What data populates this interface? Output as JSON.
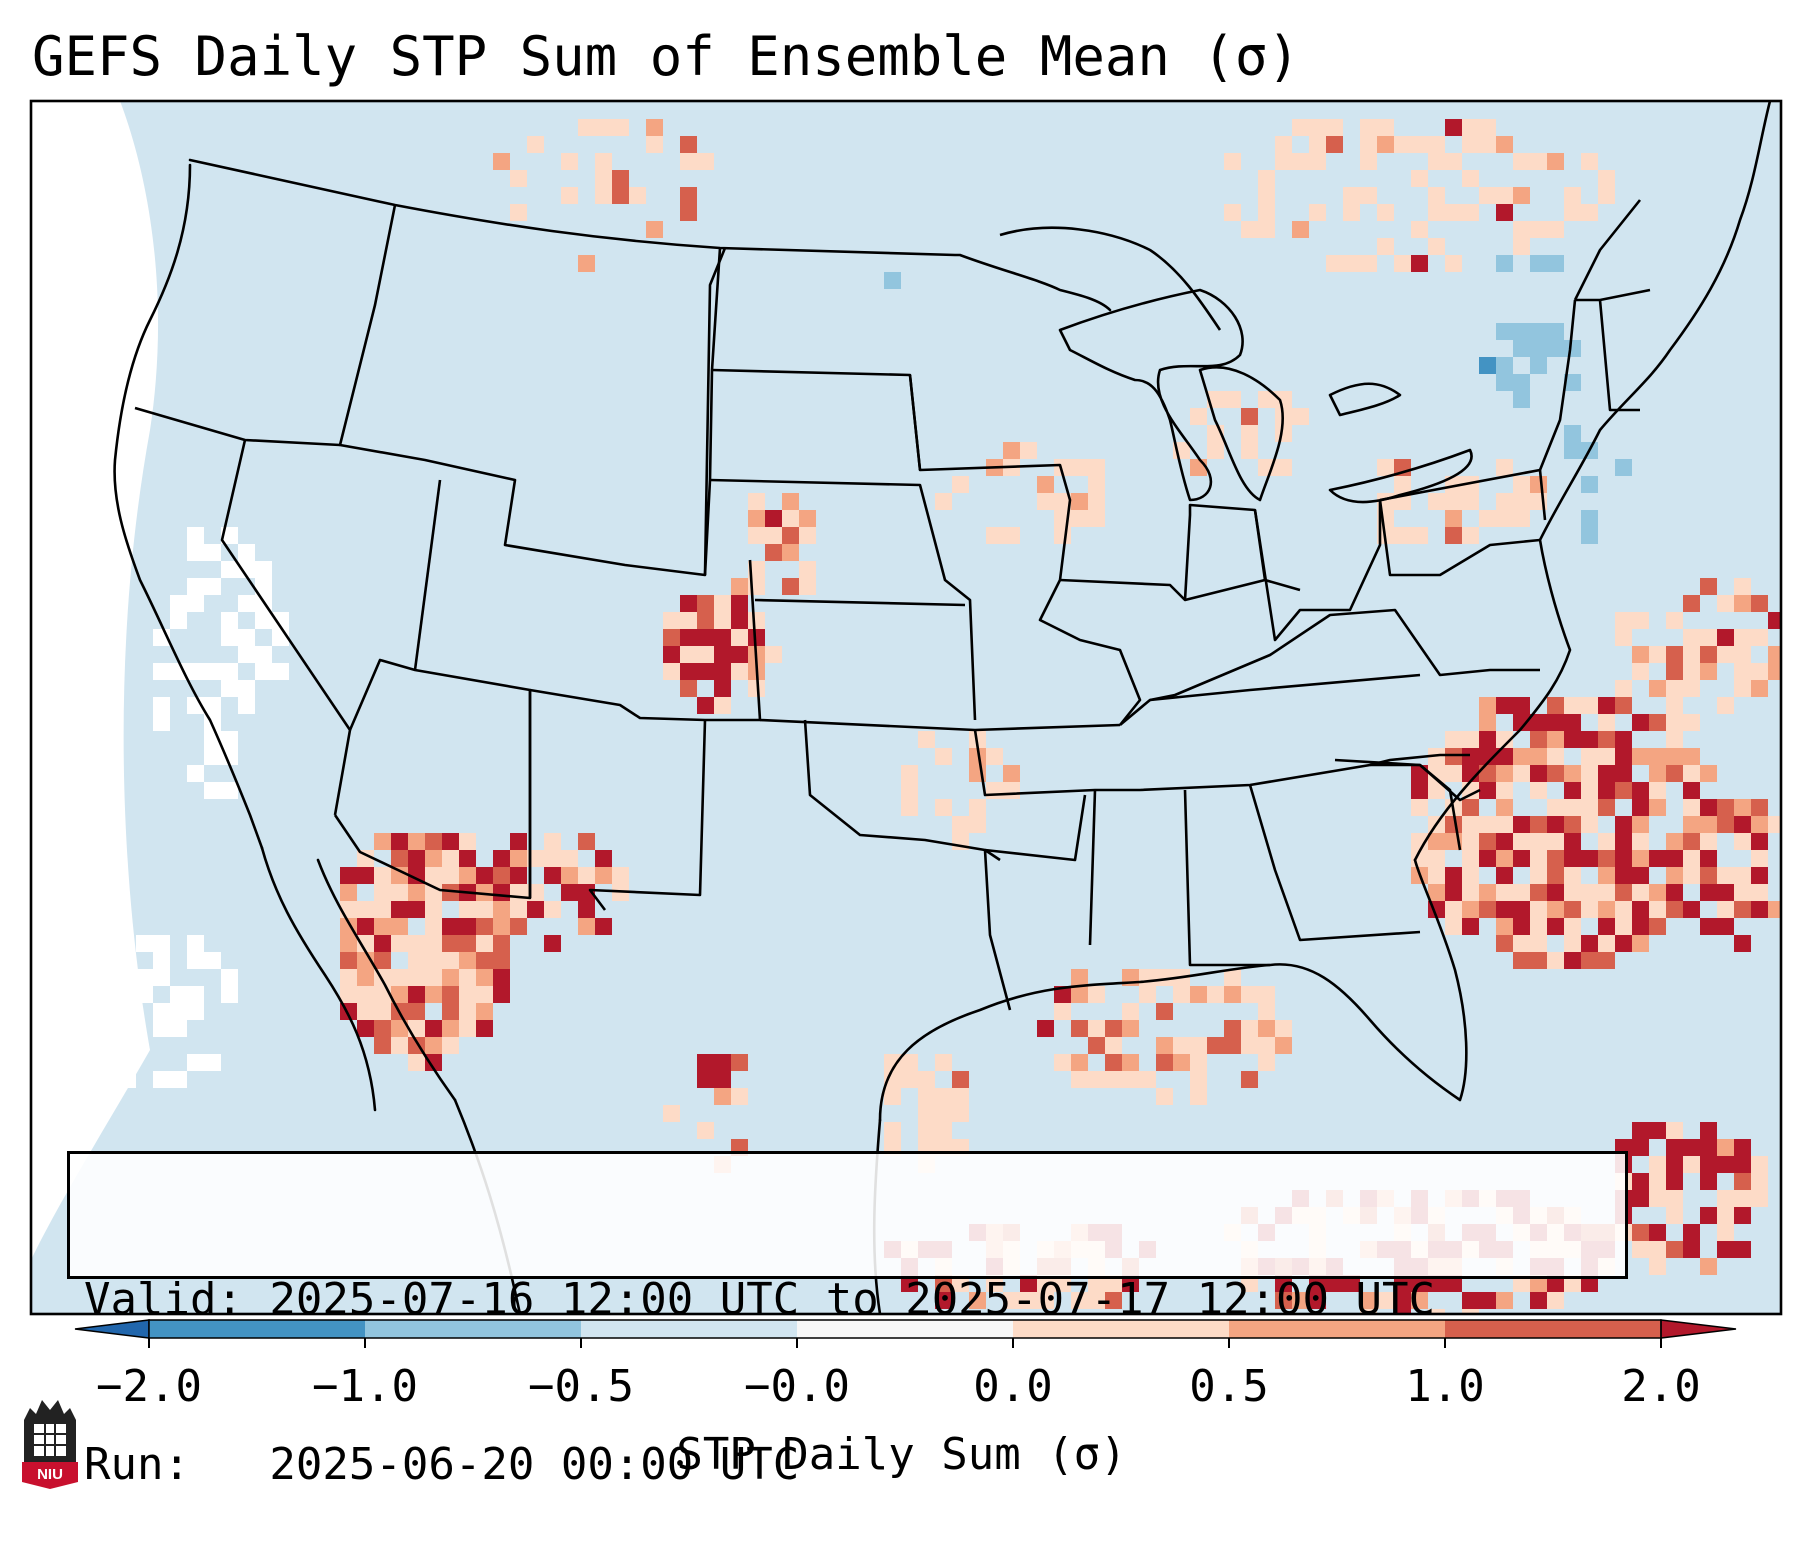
{
  "title": "GEFS Daily STP Sum of Ensemble Mean (σ)",
  "info": {
    "valid": "Valid: 2025-07-16 12:00 UTC to 2025-07-17 12:00 UTC",
    "run": "Run:   2025-06-20 00:00 UTC"
  },
  "colorbar": {
    "label": "STP Daily Sum (σ)",
    "ticks": [
      "−2.0",
      "−1.0",
      "−0.5",
      "−0.0",
      "0.0",
      "0.5",
      "1.0",
      "2.0"
    ],
    "colors": [
      "#4393c3",
      "#92c5de",
      "#d1e5f0",
      "#f7f7f7",
      "#fddbc7",
      "#f4a582",
      "#d6604d",
      "#b2182b"
    ],
    "under_color": "#2166ac",
    "over_color": "#b2182b"
  },
  "map": {
    "projection": "Lambert conformal, CONUS",
    "background_value_color": "#d1e5f0",
    "outside_color": "#ffffff"
  },
  "logo": {
    "text": "NIU",
    "color": "#c8102e"
  }
}
